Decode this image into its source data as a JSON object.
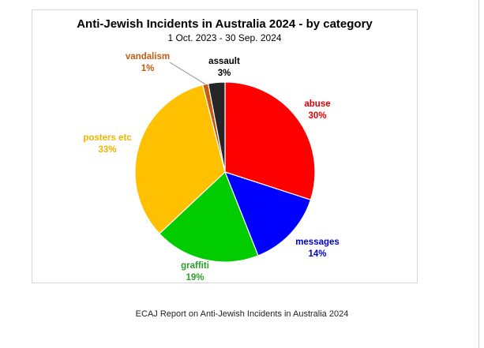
{
  "chart_data": {
    "type": "pie",
    "title": "Anti-Jewish Incidents in Australia 2024 - by category",
    "subtitle": "1 Oct. 2023 - 30 Sep. 2024",
    "legend": "none",
    "slices": [
      {
        "label": "abuse",
        "value": 30,
        "value_label": "30%",
        "color": "#ff0000",
        "label_color": "#e00000"
      },
      {
        "label": "messages",
        "value": 14,
        "value_label": "14%",
        "color": "#0000ff",
        "label_color": "#0000cc"
      },
      {
        "label": "graffiti",
        "value": 19,
        "value_label": "19%",
        "color": "#00cc00",
        "label_color": "#2aa02a"
      },
      {
        "label": "posters etc",
        "value": 33,
        "value_label": "33%",
        "color": "#ffc000",
        "label_color": "#f0b400"
      },
      {
        "label": "vandalism",
        "value": 1,
        "value_label": "1%",
        "color": "#c55a11",
        "label_color": "#c55a11"
      },
      {
        "label": "assault",
        "value": 3,
        "value_label": "3%",
        "color": "#262626",
        "label_color": "#000000"
      }
    ]
  },
  "caption": "ECAJ Report on Anti-Jewish Incidents in Australia 2024"
}
